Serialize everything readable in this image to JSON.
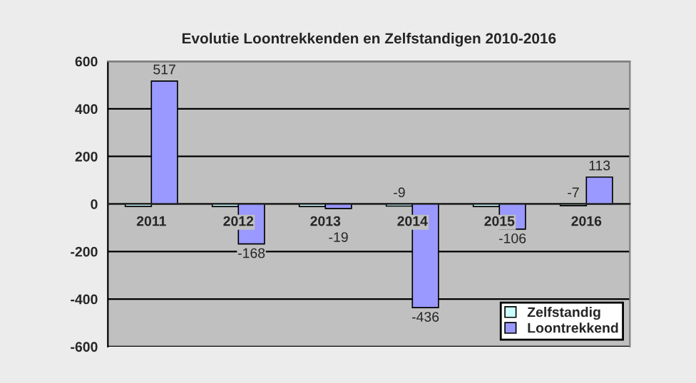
{
  "chart_data": {
    "type": "bar",
    "title": "Evolutie Loontrekkenden en Zelfstandigen 2010-2016",
    "categories": [
      "2011",
      "2012",
      "2013",
      "2014",
      "2015",
      "2016"
    ],
    "series": [
      {
        "name": "Zelfstandig",
        "color": "#ccffff",
        "values": [
          -10,
          -11,
          -11,
          -9,
          -11,
          -7
        ],
        "value_labels": [
          null,
          null,
          null,
          "-9",
          null,
          "-7"
        ]
      },
      {
        "name": "Loontrekkend",
        "color": "#9999ff",
        "values": [
          517,
          -168,
          -19,
          -436,
          -106,
          113
        ],
        "value_labels": [
          "517",
          "-168",
          "-19",
          "-436",
          "-106",
          "113"
        ]
      }
    ],
    "ylim": [
      -600,
      600
    ],
    "yticks": [
      -600,
      -400,
      -200,
      0,
      200,
      400,
      600
    ],
    "grid": "y",
    "legend": "bottom right"
  }
}
